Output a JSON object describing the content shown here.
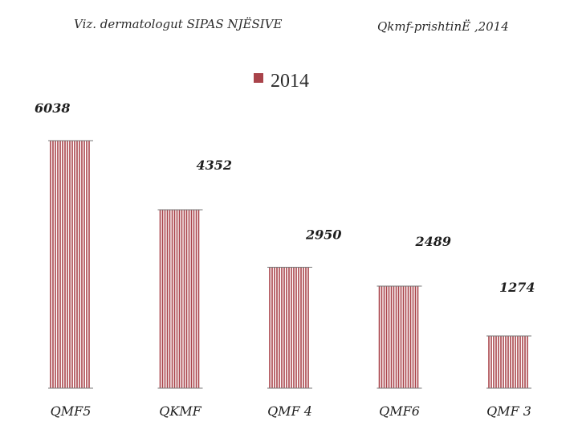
{
  "header": {
    "left_title": "Viz. dermatologut   SIPAS NJËSIVE",
    "right_title": "Qkmf-prishtinË ,2014"
  },
  "chart_data": {
    "type": "bar",
    "categories": [
      "QMF5",
      "QKMF",
      "QMF 4",
      "QMF6",
      "QMF 3"
    ],
    "series": [
      {
        "name": "2014",
        "values": [
          6038,
          4352,
          2950,
          2489,
          1274
        ],
        "color": "#a9434a"
      }
    ],
    "value_labels": [
      "6038",
      "4352",
      "2950",
      "2489",
      "1274"
    ],
    "legend": {
      "position": "top-center",
      "label": "2014"
    },
    "ylim": [
      0,
      6600
    ],
    "grid": false,
    "title": "",
    "xlabel": "",
    "ylabel": ""
  }
}
